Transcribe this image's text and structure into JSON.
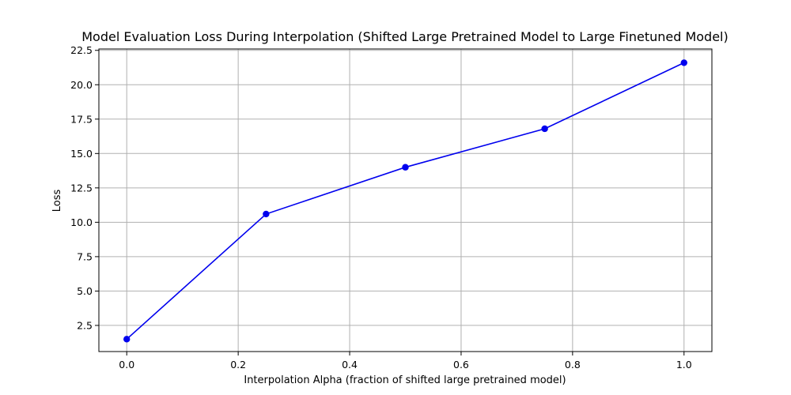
{
  "chart_data": {
    "type": "line",
    "title": "Model Evaluation Loss During Interpolation (Shifted Large Pretrained Model to Large Finetuned Model)",
    "xlabel": "Interpolation Alpha (fraction of shifted large pretrained model)",
    "ylabel": "Loss",
    "xlim": [
      -0.05,
      1.05
    ],
    "ylim": [
      0.6,
      22.6
    ],
    "x_ticks": [
      0.0,
      0.2,
      0.4,
      0.6,
      0.8,
      1.0
    ],
    "x_tick_labels": [
      "0.0",
      "0.2",
      "0.4",
      "0.6",
      "0.8",
      "1.0"
    ],
    "y_ticks": [
      2.5,
      5.0,
      7.5,
      10.0,
      12.5,
      15.0,
      17.5,
      20.0,
      22.5
    ],
    "y_tick_labels": [
      "2.5",
      "5.0",
      "7.5",
      "10.0",
      "12.5",
      "15.0",
      "17.5",
      "20.0",
      "22.5"
    ],
    "grid": true,
    "series": [
      {
        "color": "#0000ee",
        "marker": "circle",
        "x": [
          0.0,
          0.25,
          0.5,
          0.75,
          1.0
        ],
        "y": [
          1.5,
          10.6,
          14.0,
          16.8,
          21.6
        ]
      }
    ]
  }
}
